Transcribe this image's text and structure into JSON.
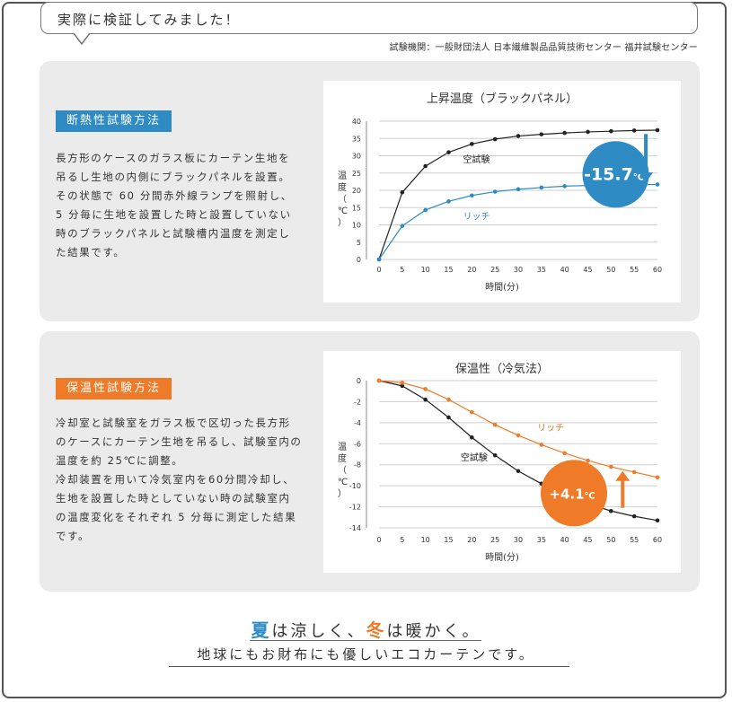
{
  "header": {
    "bubble_text": "実際に検証してみました！",
    "organization": "試験機関：一般財団法人 日本繊維製品品質技術センター 福井試験センター"
  },
  "section_insulation": {
    "label": "断熱性試験方法",
    "description_lines": [
      "長方形のケースのガラス板にカーテン生地を",
      "吊るし生地の内側にブラックパネルを設置。",
      "その状態で 60 分間赤外線ランプを照射し、",
      "5 分毎に生地を設置した時と設置していない",
      "時のブラックパネルと試験槽内温度を測定し",
      "た結果です。"
    ]
  },
  "section_warmth": {
    "label": "保温性試験方法",
    "description_lines": [
      "冷却室と試験室をガラス板で区切った長方形",
      "のケースにカーテン生地を吊るし、試験室内の",
      "温度を約 25℃に調整。",
      "冷却装置を用いて冷気室内を60分間冷却し、",
      "生地を設置した時としていない時の試験室内",
      "の温度変化をそれぞれ 5 分毎に測定した結果",
      "です。"
    ]
  },
  "chart_data": [
    {
      "type": "line",
      "title": "上昇温度（ブラックパネル）",
      "xlabel": "時間(分)",
      "ylabel": "温度（℃）",
      "x": [
        0,
        5,
        10,
        15,
        20,
        25,
        30,
        35,
        40,
        45,
        50,
        55,
        60
      ],
      "ylim": [
        0,
        40
      ],
      "yticks": [
        0,
        5,
        10,
        15,
        20,
        25,
        30,
        35,
        40
      ],
      "grid": true,
      "series": [
        {
          "name": "空試験",
          "color": "#222222",
          "values": [
            0,
            19.4,
            27,
            31,
            33.4,
            34.8,
            35.7,
            36.2,
            36.6,
            36.9,
            37.1,
            37.3,
            37.4
          ]
        },
        {
          "name": "リッチ",
          "color": "#2e8bc4",
          "values": [
            0,
            9.7,
            14.3,
            16.8,
            18.5,
            19.6,
            20.3,
            20.8,
            21.2,
            21.4,
            21.5,
            21.6,
            21.7
          ]
        }
      ],
      "badge": {
        "text": "-15.7",
        "unit": "℃",
        "color": "#2e8bc4"
      }
    },
    {
      "type": "line",
      "title": "保温性（冷気法）",
      "xlabel": "時間(分)",
      "ylabel": "温度（℃）",
      "x": [
        0,
        5,
        10,
        15,
        20,
        25,
        30,
        35,
        40,
        45,
        50,
        55,
        60
      ],
      "ylim": [
        -14,
        0
      ],
      "yticks": [
        0,
        -2,
        -4,
        -6,
        -8,
        -10,
        -12,
        -14
      ],
      "grid": true,
      "series": [
        {
          "name": "空試験",
          "color": "#222222",
          "values": [
            0,
            -0.5,
            -1.8,
            -3.5,
            -5.4,
            -7.1,
            -8.6,
            -9.8,
            -10.9,
            -11.7,
            -12.4,
            -12.9,
            -13.3
          ]
        },
        {
          "name": "リッチ",
          "color": "#ef7a27",
          "values": [
            0,
            -0.2,
            -0.8,
            -1.8,
            -3.0,
            -4.2,
            -5.2,
            -6.1,
            -6.9,
            -7.6,
            -8.2,
            -8.7,
            -9.2
          ]
        }
      ],
      "badge": {
        "text": "+4.1",
        "unit": "℃",
        "color": "#ef7a27"
      }
    }
  ],
  "footer": {
    "line1_summer": "夏",
    "line1_part_a": "は涼しく、",
    "line1_winter": "冬",
    "line1_part_b": "は暖かく。",
    "line2": "地球にもお財布にも優しいエコカーテンです。"
  }
}
